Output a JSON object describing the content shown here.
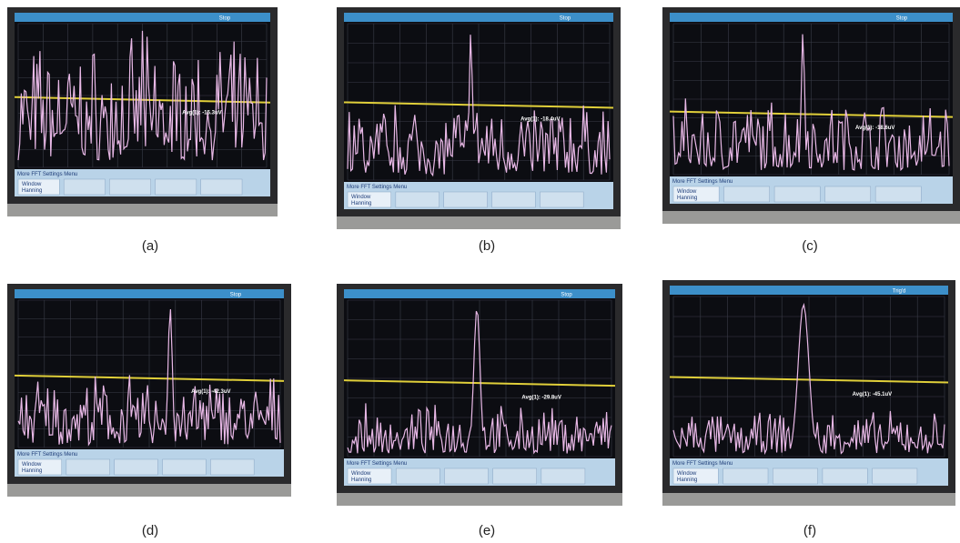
{
  "panels": [
    {
      "caption": "(a)",
      "status": "Stop",
      "avg": "Avg(1): -15.3uV",
      "menu": "More FFT Settings Menu",
      "window_label": "Window",
      "window_value": "Hanning"
    },
    {
      "caption": "(b)",
      "status": "Stop",
      "avg": "Avg(1): -18.4uV",
      "menu": "More FFT Settings Menu",
      "window_label": "Window",
      "window_value": "Hanning"
    },
    {
      "caption": "(c)",
      "status": "Stop",
      "avg": "Avg(1): -18.6uV",
      "menu": "More FFT Settings Menu",
      "window_label": "Window",
      "window_value": "Hanning"
    },
    {
      "caption": "(d)",
      "status": "Stop",
      "avg": "Avg(1): -42.3uV",
      "menu": "More FFT Settings Menu",
      "window_label": "Window",
      "window_value": "Hanning"
    },
    {
      "caption": "(e)",
      "status": "Stop",
      "avg": "Avg(1): -29.8uV",
      "menu": "More FFT Settings Menu",
      "window_label": "Window",
      "window_value": "Hanning"
    },
    {
      "caption": "(f)",
      "status": "Trig'd",
      "avg": "Avg(1): -45.1uV",
      "menu": "More FFT Settings Menu",
      "window_label": "Window",
      "window_value": "Hanning"
    }
  ]
}
